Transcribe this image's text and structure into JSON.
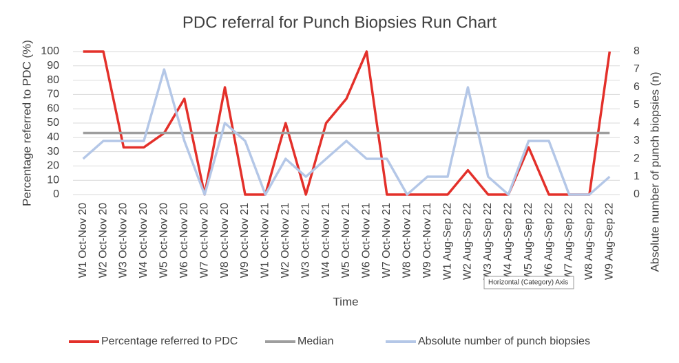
{
  "chart_data": {
    "type": "line",
    "title": "PDC referral for Punch Biopsies Run Chart",
    "x_label": "Time",
    "y_label": "Percentage referred to PDC (%)",
    "y2_label": "Absolute number of punch biopsies (n)",
    "tooltip": "Horizontal (Category) Axis",
    "categories": [
      "W1 Oct-Nov 20",
      "W2 Oct-Nov 20",
      "W3 Oct-Nov 20",
      "W4 Oct-Nov 20",
      "W5 Oct-Nov 20",
      "W6 Oct-Nov 20",
      "W7 Oct-Nov 20",
      "W8 Oct-Nov 20",
      "W9 Oct-Nov 21",
      "W1 Oct-Nov 21",
      "W2 Oct-Nov 21",
      "W3 Oct-Nov 21",
      "W4 Oct-Nov 21",
      "W5 Oct-Nov 21",
      "W6 Oct-Nov 21",
      "W7 Oct-Nov 21",
      "W8 Oct-Nov 21",
      "W9 Oct-Nov 21",
      "W1 Aug-Sep 22",
      "W2 Aug-Sep 22",
      "W3 Aug-Sep 22",
      "W4 Aug-Sep 22",
      "W5 Aug-Sep 22",
      "W6 Aug-Sep 22",
      "W7 Aug-Sep 22",
      "W8 Aug-Sep 22",
      "W9 Aug-Sep 22"
    ],
    "series": [
      {
        "name": "Percentage referred to PDC",
        "color": "#e3302a",
        "values": [
          100,
          100,
          33,
          33,
          43,
          67,
          0,
          75,
          0,
          0,
          50,
          0,
          50,
          67,
          100,
          0,
          0,
          0,
          0,
          17,
          0,
          0,
          33,
          0,
          0,
          0,
          100
        ]
      },
      {
        "name": "Median",
        "color": "#9e9e9e",
        "values": [
          43,
          43,
          43,
          43,
          43,
          43,
          43,
          43,
          43,
          43,
          43,
          43,
          43,
          43,
          43,
          43,
          43,
          43,
          43,
          43,
          43,
          43,
          43,
          43,
          43,
          43,
          43
        ]
      },
      {
        "name": "Absolute number of punch biopsies",
        "color": "#b4c7e7",
        "axis": "y2",
        "values": [
          2,
          3,
          3,
          3,
          7,
          3,
          0,
          4,
          3,
          0,
          2,
          1,
          2,
          3,
          2,
          2,
          0,
          1,
          1,
          6,
          1,
          0,
          3,
          3,
          0,
          0,
          1
        ]
      }
    ],
    "ylim": [
      0,
      100
    ],
    "yticks": [
      0,
      10,
      20,
      30,
      40,
      50,
      60,
      70,
      80,
      90,
      100
    ],
    "y2lim": [
      0,
      8
    ],
    "y2ticks": [
      0,
      1,
      2,
      3,
      4,
      5,
      6,
      7,
      8
    ],
    "grid": true,
    "legend": "bottom"
  }
}
